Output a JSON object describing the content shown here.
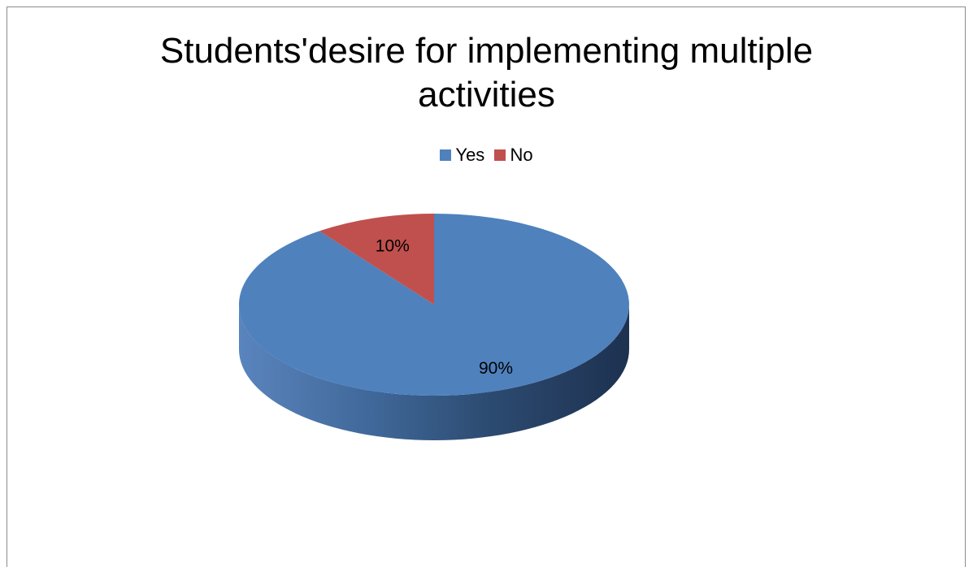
{
  "chart_data": {
    "type": "pie",
    "title_lines": [
      "Students'desire for implementing multiple",
      "activities"
    ],
    "labels": [
      "Yes",
      "No"
    ],
    "values": [
      90,
      10
    ],
    "value_labels": [
      "90%",
      "10%"
    ],
    "colors": [
      "#4F81BD",
      "#C0504D"
    ],
    "legend_position": "top",
    "three_d": true
  }
}
